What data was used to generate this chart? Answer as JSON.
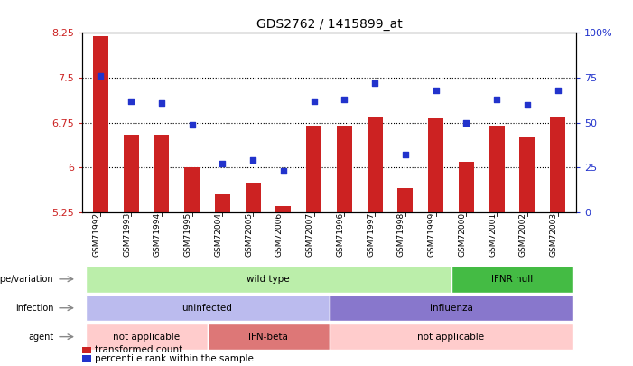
{
  "title": "GDS2762 / 1415899_at",
  "categories": [
    "GSM71992",
    "GSM71993",
    "GSM71994",
    "GSM71995",
    "GSM72004",
    "GSM72005",
    "GSM72006",
    "GSM72007",
    "GSM71996",
    "GSM71997",
    "GSM71998",
    "GSM71999",
    "GSM72000",
    "GSM72001",
    "GSM72002",
    "GSM72003"
  ],
  "bar_values": [
    8.2,
    6.55,
    6.55,
    6.0,
    5.55,
    5.75,
    5.35,
    6.7,
    6.7,
    6.85,
    5.65,
    6.82,
    6.1,
    6.7,
    6.5,
    6.85
  ],
  "dot_values": [
    76,
    62,
    61,
    49,
    27,
    29,
    23,
    62,
    63,
    72,
    32,
    68,
    50,
    63,
    60,
    68
  ],
  "ylim_left": [
    5.25,
    8.25
  ],
  "ylim_right": [
    0,
    100
  ],
  "yticks_left": [
    5.25,
    6.0,
    6.75,
    7.5,
    8.25
  ],
  "yticks_right": [
    0,
    25,
    50,
    75,
    100
  ],
  "ytick_labels_left": [
    "5.25",
    "6",
    "6.75",
    "7.5",
    "8.25"
  ],
  "ytick_labels_right": [
    "0",
    "25",
    "50",
    "75",
    "100%"
  ],
  "hlines": [
    6.0,
    6.75,
    7.5
  ],
  "bar_color": "#cc2222",
  "dot_color": "#2233cc",
  "background_color": "#ffffff",
  "bar_width": 0.5,
  "annotation_rows": [
    {
      "label": "genotype/variation",
      "segments": [
        {
          "text": "wild type",
          "start": 0,
          "end": 12,
          "color": "#bbeeaa"
        },
        {
          "text": "IFNR null",
          "start": 12,
          "end": 16,
          "color": "#44bb44"
        }
      ]
    },
    {
      "label": "infection",
      "segments": [
        {
          "text": "uninfected",
          "start": 0,
          "end": 8,
          "color": "#bbbbee"
        },
        {
          "text": "influenza",
          "start": 8,
          "end": 16,
          "color": "#8877cc"
        }
      ]
    },
    {
      "label": "agent",
      "segments": [
        {
          "text": "not applicable",
          "start": 0,
          "end": 4,
          "color": "#ffcccc"
        },
        {
          "text": "IFN-beta",
          "start": 4,
          "end": 8,
          "color": "#dd7777"
        },
        {
          "text": "not applicable",
          "start": 8,
          "end": 16,
          "color": "#ffcccc"
        }
      ]
    }
  ],
  "legend_items": [
    {
      "label": "transformed count",
      "color": "#cc2222"
    },
    {
      "label": "percentile rank within the sample",
      "color": "#2233cc"
    }
  ]
}
